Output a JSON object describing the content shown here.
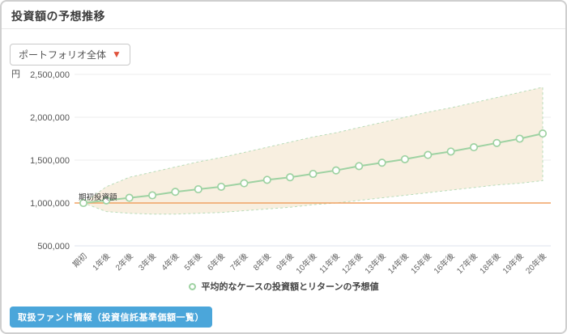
{
  "header": {
    "title": "投資額の予想推移"
  },
  "controls": {
    "portfolio_select": {
      "label": "ポートフォリオ全体",
      "chevron_icon": "chevron-down",
      "chevron_color": "#e0523c"
    }
  },
  "chart_data": {
    "type": "line",
    "unit_label": "円",
    "x_categories": [
      "期初",
      "1年後",
      "2年後",
      "3年後",
      "4年後",
      "5年後",
      "6年後",
      "7年後",
      "8年後",
      "9年後",
      "10年後",
      "11年後",
      "12年後",
      "13年後",
      "14年後",
      "15年後",
      "16年後",
      "17年後",
      "18年後",
      "19年後",
      "20年後"
    ],
    "ylim": [
      500000,
      2500000
    ],
    "y_ticks": [
      {
        "value": 2500000,
        "label": "2,500,000"
      },
      {
        "value": 2000000,
        "label": "2,000,000"
      },
      {
        "value": 1500000,
        "label": "1,500,000"
      },
      {
        "value": 1000000,
        "label": "1,000,000"
      },
      {
        "value": 500000,
        "label": "500,000"
      }
    ],
    "series": [
      {
        "name": "平均的なケースの投資額とリターンの予想値",
        "color": "#9ed2a2",
        "marker": "circle-outline",
        "values": [
          1000000,
          1030000,
          1060000,
          1090000,
          1130000,
          1160000,
          1190000,
          1230000,
          1270000,
          1300000,
          1340000,
          1380000,
          1430000,
          1470000,
          1510000,
          1560000,
          1600000,
          1650000,
          1700000,
          1750000,
          1810000
        ]
      }
    ],
    "band": {
      "fill": "#f8efe0",
      "border": "#b9dcb9",
      "upper": [
        1000000,
        1190000,
        1300000,
        1360000,
        1420000,
        1480000,
        1530000,
        1590000,
        1650000,
        1710000,
        1770000,
        1820000,
        1880000,
        1940000,
        2000000,
        2060000,
        2110000,
        2170000,
        2230000,
        2290000,
        2350000
      ],
      "lower": [
        1000000,
        900000,
        880000,
        870000,
        870000,
        880000,
        890000,
        910000,
        930000,
        950000,
        980000,
        1000000,
        1030000,
        1060000,
        1090000,
        1120000,
        1150000,
        1180000,
        1210000,
        1230000,
        1260000
      ]
    },
    "baseline": {
      "value": 1000000,
      "color": "#f0a262",
      "annotation": "期初投資額"
    },
    "grid": {
      "color": "#ececec",
      "bottom_color": "#dde2ee"
    }
  },
  "legend": {
    "items": [
      {
        "label": "平均的なケースの投資額とリターンの予想値",
        "marker": "circle-outline",
        "color": "#9ed2a2"
      }
    ]
  },
  "footer": {
    "fund_info_button_label": "取扱ファンド情報（投資信託基準価額一覧）"
  }
}
